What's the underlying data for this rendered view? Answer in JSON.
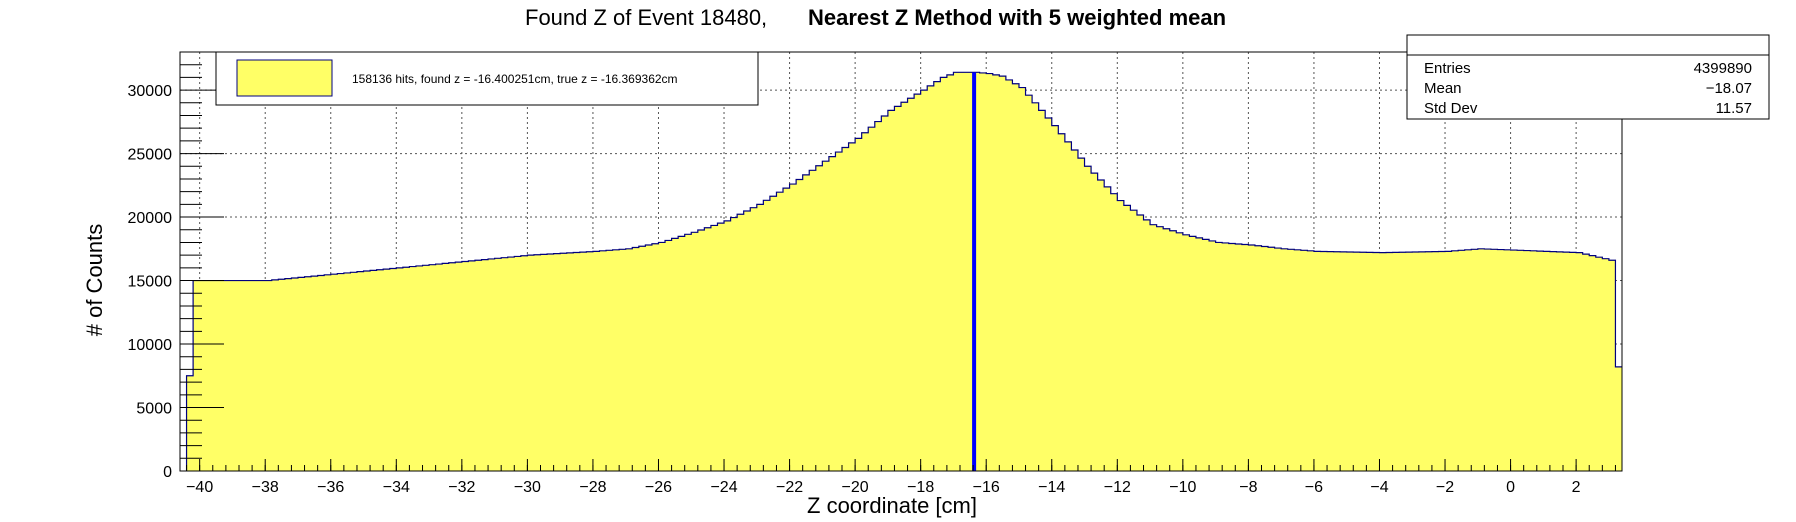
{
  "chart_data": {
    "type": "bar",
    "title_prefix": "Found Z of Event 18480,",
    "title_main": "Nearest Z Method with 5 weighted mean",
    "xlabel": "Z coordinate [cm]",
    "ylabel": "# of Counts",
    "xlim": [
      -40.6,
      3.4
    ],
    "ylim": [
      0,
      33000
    ],
    "x_ticks": [
      -40,
      -38,
      -36,
      -34,
      -32,
      -30,
      -28,
      -26,
      -24,
      -22,
      -20,
      -18,
      -16,
      -14,
      -12,
      -10,
      -8,
      -6,
      -4,
      -2,
      0,
      2
    ],
    "y_ticks": [
      0,
      5000,
      10000,
      15000,
      20000,
      25000,
      30000
    ],
    "grid": true,
    "histogram": {
      "bin_width": 0.2,
      "first_bin_low": -40.4,
      "profile_x": [
        -40.4,
        -40.2,
        -40.0,
        -38.0,
        -36.0,
        -34.0,
        -32.0,
        -30.0,
        -28.0,
        -27.0,
        -26.0,
        -25.0,
        -24.0,
        -23.0,
        -22.0,
        -21.0,
        -20.0,
        -19.0,
        -18.0,
        -17.4,
        -17.0,
        -16.6,
        -16.4,
        -16.0,
        -15.6,
        -15.0,
        -14.0,
        -13.0,
        -12.0,
        -11.0,
        -10.0,
        -9.0,
        -8.0,
        -7.0,
        -6.0,
        -4.0,
        -2.0,
        -1.0,
        0.0,
        2.0,
        3.0,
        3.2,
        3.4
      ],
      "profile_y": [
        7500,
        15000,
        15000,
        15000,
        15500,
        16000,
        16500,
        17000,
        17300,
        17500,
        18000,
        18800,
        19700,
        21000,
        22600,
        24400,
        26200,
        28400,
        30000,
        31000,
        31400,
        31400,
        31400,
        31300,
        31100,
        30200,
        27200,
        24000,
        21300,
        19400,
        18600,
        18000,
        17800,
        17500,
        17300,
        17200,
        17300,
        17500,
        17400,
        17200,
        16600,
        8200,
        8200
      ],
      "fill_color": "#ffff66",
      "line_color": "#00007f"
    },
    "marker": {
      "x": -16.369362,
      "color": "#0000ff"
    },
    "legend": {
      "text": "158136 hits, found z = -16.400251cm, true z = -16.369362cm",
      "swatch_color": "#ffff66",
      "position": "top-left"
    },
    "stats": {
      "position": "top-right",
      "rows": [
        {
          "label": "Entries",
          "value": "4399890"
        },
        {
          "label": "Mean",
          "value": "−18.07"
        },
        {
          "label": "Std Dev",
          "value": "11.57"
        }
      ]
    }
  }
}
